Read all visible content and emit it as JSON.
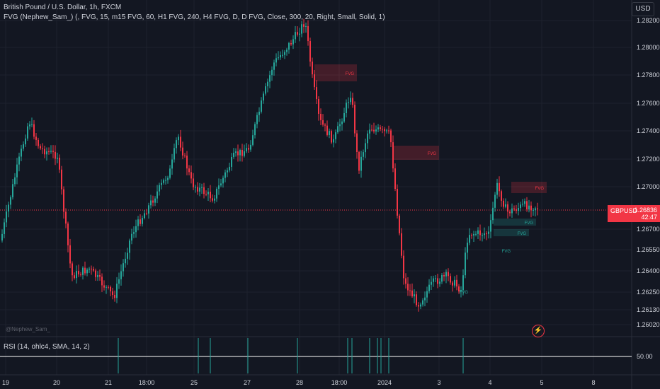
{
  "header": {
    "symbol_line": "British Pound / U.S. Dollar, 1h, FXCM",
    "indicator_line": "FVG (Nephew_Sam_) (, FVG, 15, m15 FVG, 60, H1 FVG, 240, H4 FVG, D, D FVG, Close, 300, 20, Right, Small, Solid, 1)"
  },
  "currency_button": "USD",
  "price_axis": {
    "labels": [
      "1.28200",
      "1.28000",
      "1.27800",
      "1.27600",
      "1.27400",
      "1.27200",
      "1.27000",
      "1.26700",
      "1.26550",
      "1.26400",
      "1.26250",
      "1.26130",
      "1.26020"
    ]
  },
  "time_axis": {
    "labels": [
      "19",
      "20",
      "21",
      "18:00",
      "25",
      "27",
      "28",
      "18:00",
      "2024",
      "3",
      "4",
      "5",
      "8"
    ]
  },
  "current_price": {
    "symbol": "GBPUSD",
    "value": "1.26836",
    "countdown": "42:47"
  },
  "fvg_zones": [
    "FVG",
    "FVG",
    "FVG",
    "FVG",
    "FVG",
    "FVG",
    "FVG"
  ],
  "watermark": "@Nephew_Sam_",
  "rsi": {
    "label": "RSI (14, ohlc4, SMA, 14, 2)",
    "level_label": "50.00"
  },
  "colors": {
    "background": "#131722",
    "bull": "#26a69a",
    "bear": "#f23645",
    "text": "#d1d4dc",
    "grid": "#1e222d"
  },
  "icons": [
    "lightning-icon"
  ]
}
